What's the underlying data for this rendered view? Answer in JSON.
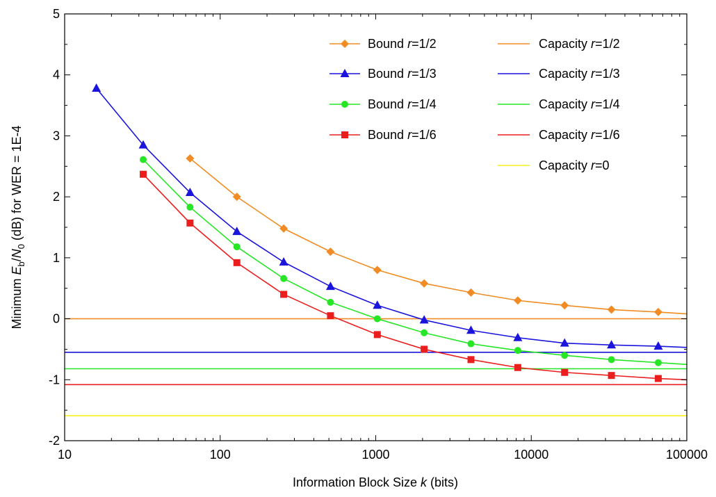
{
  "chart_data": {
    "type": "line",
    "title": "",
    "xlabel": {
      "pre": "Information Block Size ",
      "var": "k",
      "post": " (bits)"
    },
    "ylabel": {
      "pre": "Minimum ",
      "e": "E",
      "esub": "b",
      "slash": "/",
      "n": "N",
      "nsub": "0",
      "post": "  (dB) for WER = 1E-4"
    },
    "x_scale": "log",
    "xlim": [
      10,
      100000
    ],
    "ylim": [
      -2,
      5
    ],
    "x_ticks": [
      10,
      100,
      1000,
      10000,
      100000
    ],
    "x_tick_labels": [
      "10",
      "100",
      "1000",
      "10000",
      "100000"
    ],
    "y_ticks": [
      -2,
      -1,
      0,
      1,
      2,
      3,
      4,
      5
    ],
    "y_tick_labels": [
      "-2",
      "-1",
      "0",
      "1",
      "2",
      "3",
      "4",
      "5"
    ],
    "grid": false,
    "legend_position": "top-right, two columns",
    "series": [
      {
        "name": "Bound r=1/2",
        "label_pre": "Bound ",
        "label_var": "r",
        "label_post": "=1/2",
        "color": "#f08c23",
        "marker": "diamond",
        "x": [
          64,
          128,
          256,
          512,
          1024,
          2048,
          4096,
          8192,
          16384,
          32768,
          65536
        ],
        "y": [
          2.63,
          2.0,
          1.48,
          1.1,
          0.8,
          0.58,
          0.43,
          0.3,
          0.22,
          0.15,
          0.11
        ],
        "tail": [
          100000,
          0.08
        ]
      },
      {
        "name": "Bound r=1/3",
        "label_pre": "Bound ",
        "label_var": "r",
        "label_post": "=1/3",
        "color": "#1a14dc",
        "marker": "triangle",
        "x": [
          16,
          32,
          64,
          128,
          256,
          512,
          1024,
          2048,
          4096,
          8192,
          16384,
          32768,
          65536
        ],
        "y": [
          3.78,
          2.85,
          2.07,
          1.43,
          0.93,
          0.53,
          0.22,
          -0.02,
          -0.19,
          -0.31,
          -0.4,
          -0.43,
          -0.45
        ],
        "tail": [
          100000,
          -0.47
        ]
      },
      {
        "name": "Bound r=1/4",
        "label_pre": "Bound ",
        "label_var": "r",
        "label_post": "=1/4",
        "color": "#26e626",
        "marker": "circle",
        "x": [
          32,
          64,
          128,
          256,
          512,
          1024,
          2048,
          4096,
          8192,
          16384,
          32768,
          65536
        ],
        "y": [
          2.61,
          1.83,
          1.18,
          0.66,
          0.27,
          0.0,
          -0.23,
          -0.41,
          -0.52,
          -0.6,
          -0.67,
          -0.72
        ],
        "tail": [
          100000,
          -0.75
        ]
      },
      {
        "name": "Bound r=1/6",
        "label_pre": "Bound ",
        "label_var": "r",
        "label_post": "=1/6",
        "color": "#eb1e1e",
        "marker": "square",
        "x": [
          32,
          64,
          128,
          256,
          512,
          1024,
          2048,
          4096,
          8192,
          16384,
          32768,
          65536
        ],
        "y": [
          2.37,
          1.57,
          0.92,
          0.4,
          0.05,
          -0.26,
          -0.5,
          -0.67,
          -0.8,
          -0.88,
          -0.93,
          -0.98
        ],
        "tail": [
          100000,
          -1.0
        ]
      }
    ],
    "capacity": [
      {
        "name": "Capacity r=1/2",
        "label_pre": "Capacity ",
        "label_var": "r",
        "label_post": "=1/2",
        "color": "#f08c23",
        "y": 0.0
      },
      {
        "name": "Capacity r=1/3",
        "label_pre": "Capacity ",
        "label_var": "r",
        "label_post": "=1/3",
        "color": "#1a14dc",
        "y": -0.55
      },
      {
        "name": "Capacity r=1/4",
        "label_pre": "Capacity ",
        "label_var": "r",
        "label_post": "=1/4",
        "color": "#26e626",
        "y": -0.82
      },
      {
        "name": "Capacity r=1/6",
        "label_pre": "Capacity ",
        "label_var": "r",
        "label_post": "=1/6",
        "color": "#eb1e1e",
        "y": -1.08
      },
      {
        "name": "Capacity r=0",
        "label_pre": "Capacity ",
        "label_var": "r",
        "label_post": "=0",
        "color": "#f5f01e",
        "y": -1.59
      }
    ]
  }
}
